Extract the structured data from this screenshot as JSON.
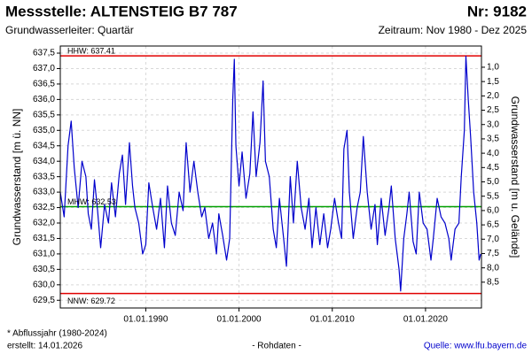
{
  "chart_data": {
    "type": "line",
    "title": "Messstelle: ALTENSTEIG B7 787",
    "number": "Nr: 9182",
    "subtitle": "Grundwasserleiter: Quartär",
    "period": "Zeitraum: Nov 1980 - Dez 2025",
    "ylabel": "Grundwasserstand [m ü. NN]",
    "y2label": "Grundwasserstand [m u. Gelände]",
    "footnote": "* Abflussjahr (1980-2024)",
    "created": "erstellt:  14.01.2026",
    "datatype": "- Rohdaten -",
    "source": "Quelle:  www.lfu.bayern.de",
    "grid": true,
    "xlim": [
      "1980-11-01",
      "2025-12-31"
    ],
    "xticks": [
      {
        "value": "1990-01-01",
        "label": "01.01.1990"
      },
      {
        "value": "2000-01-01",
        "label": "01.01.2000"
      },
      {
        "value": "2010-01-01",
        "label": "01.01.2010"
      },
      {
        "value": "2020-01-01",
        "label": "01.01.2020"
      }
    ],
    "ylim": [
      629.25,
      637.73
    ],
    "yticks": [
      {
        "value": 629.5,
        "label": "629,5"
      },
      {
        "value": 630,
        "label": "630,0"
      },
      {
        "value": 630.5,
        "label": "630,5"
      },
      {
        "value": 631,
        "label": "631,0"
      },
      {
        "value": 631.5,
        "label": "631,5"
      },
      {
        "value": 632,
        "label": "632,0"
      },
      {
        "value": 632.5,
        "label": "632,5"
      },
      {
        "value": 633,
        "label": "633,0"
      },
      {
        "value": 633.5,
        "label": "633,5"
      },
      {
        "value": 634,
        "label": "634,0"
      },
      {
        "value": 634.5,
        "label": "634,5"
      },
      {
        "value": 635,
        "label": "635,0"
      },
      {
        "value": 635.5,
        "label": "635,5"
      },
      {
        "value": 636,
        "label": "636,0"
      },
      {
        "value": 636.5,
        "label": "636,5"
      },
      {
        "value": 637,
        "label": "637,0"
      },
      {
        "value": 637.5,
        "label": "637,5"
      }
    ],
    "y2lim": [
      9.4,
      0.26
    ],
    "y2ticks": [
      {
        "value": 1,
        "label": "1,0"
      },
      {
        "value": 1.5,
        "label": "1,5"
      },
      {
        "value": 2,
        "label": "2,0"
      },
      {
        "value": 2.5,
        "label": "2,5"
      },
      {
        "value": 3,
        "label": "3,0"
      },
      {
        "value": 3.5,
        "label": "3,5"
      },
      {
        "value": 4,
        "label": "4,0"
      },
      {
        "value": 4.5,
        "label": "4,5"
      },
      {
        "value": 5,
        "label": "5,0"
      },
      {
        "value": 5.5,
        "label": "5,5"
      },
      {
        "value": 6,
        "label": "6,0"
      },
      {
        "value": 6.5,
        "label": "6,5"
      },
      {
        "value": 7,
        "label": "7,0"
      },
      {
        "value": 7.5,
        "label": "7,5"
      },
      {
        "value": 8,
        "label": "8,0"
      },
      {
        "value": 8.5,
        "label": "8,5"
      }
    ],
    "reference_lines": [
      {
        "label": "HHW: 637.41",
        "value": 637.41,
        "color": "#e00000"
      },
      {
        "label": "MHW: 632.53",
        "value": 632.53,
        "color": "#00a000"
      },
      {
        "label": "NNW: 629.72",
        "value": 629.72,
        "color": "#e00000"
      }
    ],
    "x": [
      "1980-11-01",
      "1981-04-01",
      "1981-09-01",
      "1982-01-01",
      "1982-05-01",
      "1982-10-01",
      "1983-03-01",
      "1983-08-01",
      "1983-11-01",
      "1984-03-01",
      "1984-07-01",
      "1984-11-01",
      "1985-03-01",
      "1985-08-01",
      "1986-01-01",
      "1986-05-01",
      "1986-10-01",
      "1987-03-01",
      "1987-07-01",
      "1987-11-01",
      "1988-04-01",
      "1988-08-01",
      "1988-11-01",
      "1989-04-01",
      "1989-09-01",
      "1990-01-01",
      "1990-05-01",
      "1990-10-01",
      "1991-03-01",
      "1991-08-01",
      "1992-01-01",
      "1992-05-01",
      "1992-10-01",
      "1993-03-01",
      "1993-08-01",
      "1994-01-01",
      "1994-05-01",
      "1994-10-01",
      "1995-03-01",
      "1995-08-01",
      "1996-01-01",
      "1996-05-01",
      "1996-10-01",
      "1997-03-01",
      "1997-08-01",
      "1997-11-01",
      "1998-04-01",
      "1998-09-01",
      "1999-01-01",
      "1999-05-01",
      "1999-07-01",
      "1999-09-01",
      "2000-01-01",
      "2000-05-01",
      "2000-10-01",
      "2001-03-01",
      "2001-07-01",
      "2001-11-01",
      "2002-04-01",
      "2002-08-01",
      "2002-11-01",
      "2003-04-01",
      "2003-09-01",
      "2004-01-01",
      "2004-05-01",
      "2004-10-01",
      "2005-02-01",
      "2005-07-01",
      "2005-11-01",
      "2006-04-01",
      "2006-09-01",
      "2007-02-01",
      "2007-07-01",
      "2007-11-01",
      "2008-04-01",
      "2008-09-01",
      "2009-02-01",
      "2009-07-01",
      "2009-11-01",
      "2010-04-01",
      "2010-09-01",
      "2011-01-01",
      "2011-04-01",
      "2011-08-01",
      "2011-11-01",
      "2012-04-01",
      "2012-09-01",
      "2013-01-01",
      "2013-05-01",
      "2013-10-01",
      "2014-03-01",
      "2014-08-01",
      "2014-11-01",
      "2015-04-01",
      "2015-09-01",
      "2016-02-01",
      "2016-05-01",
      "2016-10-01",
      "2017-03-01",
      "2017-05-01",
      "2017-09-01",
      "2018-01-01",
      "2018-04-01",
      "2018-09-01",
      "2019-01-01",
      "2019-05-01",
      "2019-10-01",
      "2020-03-01",
      "2020-08-01",
      "2020-11-01",
      "2021-04-01",
      "2021-09-01",
      "2022-02-01",
      "2022-07-01",
      "2022-10-01",
      "2023-03-01",
      "2023-08-01",
      "2023-11-01",
      "2024-03-01",
      "2024-05-01",
      "2024-08-01",
      "2024-11-01",
      "2025-03-01",
      "2025-07-01",
      "2025-10-01",
      "2025-12-01"
    ],
    "series": [
      {
        "name": "Grundwasserstand",
        "color": "#0000cc",
        "values": [
          633.0,
          632.2,
          634.5,
          635.3,
          633.8,
          632.5,
          634.0,
          633.5,
          632.3,
          631.8,
          633.4,
          632.4,
          631.2,
          632.6,
          632.0,
          633.3,
          632.2,
          633.6,
          634.2,
          632.6,
          634.6,
          633.2,
          632.5,
          632.0,
          631.0,
          631.3,
          633.3,
          632.5,
          631.8,
          632.8,
          631.2,
          633.2,
          632.0,
          631.6,
          633.0,
          632.4,
          634.6,
          633.0,
          634.0,
          633.0,
          632.2,
          632.5,
          631.5,
          632.0,
          631.0,
          632.3,
          631.6,
          630.8,
          631.5,
          636.0,
          637.3,
          634.5,
          633.2,
          634.3,
          632.8,
          633.6,
          635.6,
          633.5,
          634.6,
          636.6,
          634.0,
          633.5,
          631.8,
          631.2,
          632.8,
          631.6,
          630.6,
          633.5,
          632.0,
          634.0,
          632.5,
          631.8,
          632.8,
          631.2,
          632.5,
          631.3,
          632.3,
          631.2,
          631.8,
          632.8,
          632.0,
          631.5,
          634.4,
          635.0,
          633.0,
          631.5,
          632.5,
          633.0,
          634.8,
          633.0,
          631.8,
          632.6,
          631.3,
          632.8,
          631.6,
          632.5,
          633.2,
          631.5,
          630.5,
          629.8,
          631.5,
          632.3,
          633.0,
          631.4,
          631.0,
          633.0,
          632.0,
          631.8,
          630.8,
          631.5,
          632.8,
          632.2,
          632.0,
          631.5,
          630.8,
          631.8,
          632.0,
          633.5,
          635.0,
          637.4,
          636.0,
          634.8,
          633.0,
          632.0,
          630.8,
          631.0
        ]
      }
    ]
  }
}
